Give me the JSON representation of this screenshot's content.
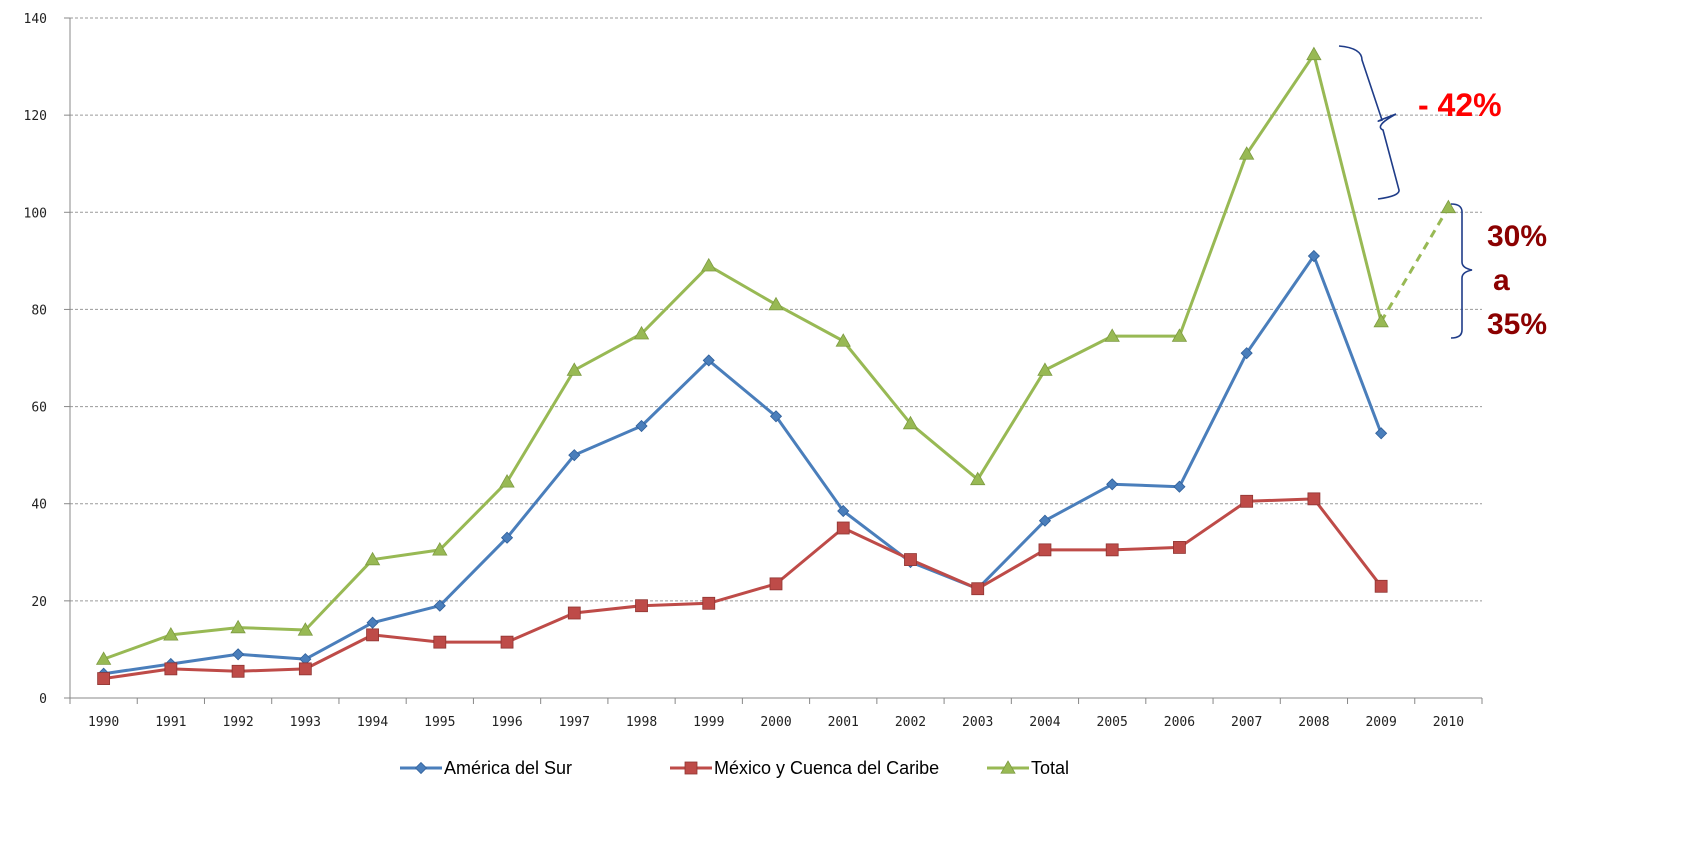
{
  "chart_data": {
    "type": "line",
    "title": "",
    "xlabel": "",
    "ylabel": "",
    "x": [
      "1990",
      "1991",
      "1992",
      "1993",
      "1994",
      "1995",
      "1996",
      "1997",
      "1998",
      "1999",
      "2000",
      "2001",
      "2002",
      "2003",
      "2004",
      "2005",
      "2006",
      "2007",
      "2008",
      "2009",
      "2010"
    ],
    "ylim": [
      0,
      140
    ],
    "yticks": [
      0,
      20,
      40,
      60,
      80,
      100,
      120,
      140
    ],
    "grid": "horizontal dashed",
    "legend": "bottom",
    "series": [
      {
        "name": "América del Sur",
        "color": "#4a7ebb",
        "marker": "diamond",
        "values": [
          5,
          7,
          9,
          8,
          15.5,
          19,
          33,
          50,
          56,
          69.5,
          58,
          38.5,
          28,
          22.5,
          36.5,
          44,
          43.5,
          71,
          91,
          54.5,
          null
        ]
      },
      {
        "name": "México y Cuenca del Caribe",
        "color": "#be4b48",
        "marker": "square",
        "values": [
          4,
          6,
          5.5,
          6,
          13,
          11.5,
          11.5,
          17.5,
          19,
          19.5,
          23.5,
          35,
          28.5,
          22.5,
          30.5,
          30.5,
          31,
          40.5,
          41,
          23,
          null
        ]
      },
      {
        "name": "Total",
        "color": "#98b954",
        "marker": "triangle",
        "values": [
          8,
          13,
          14.5,
          14,
          28.5,
          30.5,
          44.5,
          67.5,
          75,
          89,
          81,
          73.5,
          56.5,
          45,
          67.5,
          74.5,
          74.5,
          112,
          132.5,
          77.5,
          null
        ],
        "projection": {
          "from": "2009",
          "to": "2010",
          "from_value": 77.5,
          "to_value": 101
        }
      }
    ],
    "annotations": [
      {
        "text": "- 42%",
        "color": "#ff0000"
      },
      {
        "lines": [
          "30%",
          "a",
          "35%"
        ],
        "color": "#8b0000"
      }
    ]
  }
}
